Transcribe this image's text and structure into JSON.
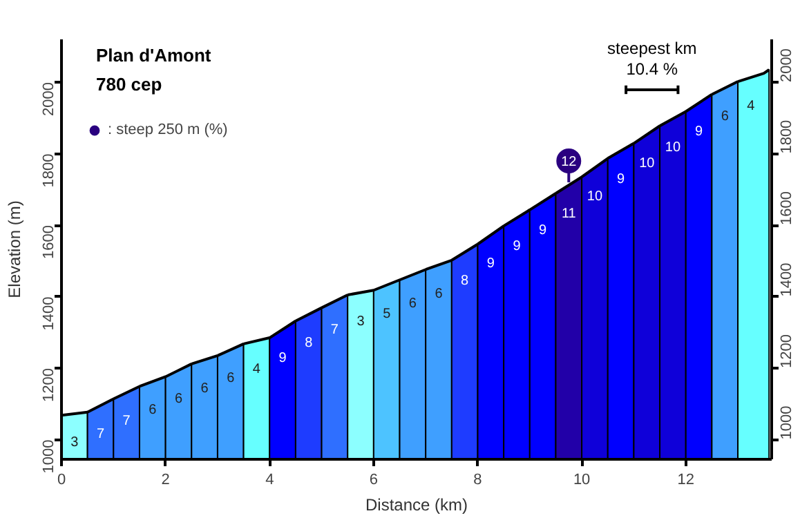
{
  "chart_data": {
    "type": "area",
    "title": "Plan d'Amont",
    "subtitle": "780 cep",
    "xlabel": "Distance (km)",
    "ylabel": "Elevation (m)",
    "xlim": [
      0,
      13.65
    ],
    "xticks": [
      0,
      2,
      4,
      6,
      8,
      10,
      12
    ],
    "ylim": [
      945,
      2120
    ],
    "yticks": [
      1000,
      1200,
      1400,
      1600,
      1800,
      2000
    ],
    "y2lim": [
      945,
      2120
    ],
    "y2ticks": [
      1000,
      1200,
      1400,
      1600,
      1800,
      2000
    ],
    "grid": false,
    "legend": "top left",
    "series": [
      {
        "x": [
          0,
          0.5
        ],
        "values": [
          1068,
          1077
        ],
        "color": "#8cffff"
      },
      {
        "x": [
          0.5,
          1
        ],
        "values": [
          1077,
          1114
        ],
        "color": "#2f6fff"
      },
      {
        "x": [
          1,
          1.5
        ],
        "values": [
          1114,
          1149
        ],
        "color": "#2f6fff"
      },
      {
        "x": [
          1.5,
          2
        ],
        "values": [
          1149,
          1176
        ],
        "color": "#3f9fff"
      },
      {
        "x": [
          2,
          2.5
        ],
        "values": [
          1176,
          1212
        ],
        "color": "#3f9fff"
      },
      {
        "x": [
          2.5,
          3
        ],
        "values": [
          1212,
          1235
        ],
        "color": "#3f9fff"
      },
      {
        "x": [
          3,
          3.5
        ],
        "values": [
          1235,
          1268
        ],
        "color": "#3f9fff"
      },
      {
        "x": [
          3.5,
          4
        ],
        "values": [
          1268,
          1285
        ],
        "color": "#66ffff"
      },
      {
        "x": [
          4,
          4.5
        ],
        "values": [
          1285,
          1332
        ],
        "color": "#0000ff"
      },
      {
        "x": [
          4.5,
          5
        ],
        "values": [
          1332,
          1369
        ],
        "color": "#1e3cff"
      },
      {
        "x": [
          5,
          5.5
        ],
        "values": [
          1369,
          1405
        ],
        "color": "#2f6fff"
      },
      {
        "x": [
          5.5,
          6
        ],
        "values": [
          1405,
          1418
        ],
        "color": "#8cffff"
      },
      {
        "x": [
          6,
          6.5
        ],
        "values": [
          1418,
          1447
        ],
        "color": "#4dc3ff"
      },
      {
        "x": [
          6.5,
          7
        ],
        "values": [
          1447,
          1476
        ],
        "color": "#3f9fff"
      },
      {
        "x": [
          7,
          7.5
        ],
        "values": [
          1476,
          1502
        ],
        "color": "#3f9fff"
      },
      {
        "x": [
          7.5,
          8
        ],
        "values": [
          1502,
          1547
        ],
        "color": "#1e3cff"
      },
      {
        "x": [
          8,
          8.5
        ],
        "values": [
          1547,
          1598
        ],
        "color": "#0000ff"
      },
      {
        "x": [
          8.5,
          9
        ],
        "values": [
          1598,
          1643
        ],
        "color": "#0000ff"
      },
      {
        "x": [
          9,
          9.5
        ],
        "values": [
          1643,
          1689
        ],
        "color": "#0000ff"
      },
      {
        "x": [
          9.5,
          10
        ],
        "values": [
          1689,
          1735
        ],
        "color": "#2200a8"
      },
      {
        "x": [
          10,
          10.5
        ],
        "values": [
          1735,
          1787
        ],
        "color": "#0f00d9"
      },
      {
        "x": [
          10.5,
          11
        ],
        "values": [
          1787,
          1829
        ],
        "color": "#0000ff"
      },
      {
        "x": [
          11,
          11.5
        ],
        "values": [
          1829,
          1878
        ],
        "color": "#0f00d9"
      },
      {
        "x": [
          11.5,
          12
        ],
        "values": [
          1878,
          1918
        ],
        "color": "#0f00d9"
      },
      {
        "x": [
          12,
          12.5
        ],
        "values": [
          1918,
          1966
        ],
        "color": "#0000ff"
      },
      {
        "x": [
          12.5,
          13
        ],
        "values": [
          1966,
          2002
        ],
        "color": "#3f9fff"
      },
      {
        "x": [
          13,
          13.5,
          13.6
        ],
        "values": [
          2002,
          2025,
          2035
        ],
        "color": "#66ffff"
      },
      {
        "type": "scatter",
        "name": ": steep 250 m (%)",
        "marker": "circle",
        "color": "#2a0080",
        "x": [
          9.75
        ],
        "values": [
          1780
        ]
      }
    ],
    "annotations": [
      "3",
      "7",
      "7",
      "6",
      "6",
      "6",
      "6",
      "4",
      "9",
      "8",
      "7",
      "3",
      "5",
      "6",
      "6",
      "8",
      "9",
      "9",
      "9",
      "11",
      "10",
      "9",
      "10",
      "10",
      "9",
      "6",
      "4",
      {
        "text": "12",
        "x": 9.75,
        "y": 1780
      },
      "steepest km",
      "10.4 %"
    ]
  }
}
